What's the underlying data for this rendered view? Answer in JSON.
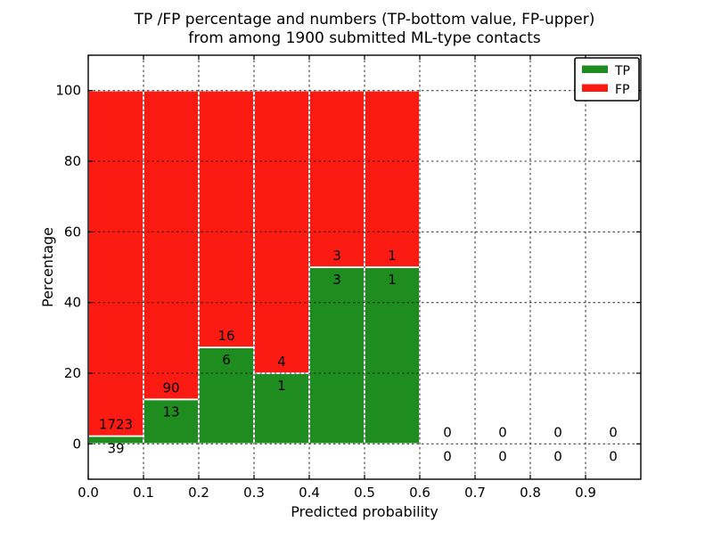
{
  "chart_data": {
    "type": "bar",
    "stacked": true,
    "title_lines": [
      "TP /FP percentage and numbers (TP-bottom value, FP-upper)",
      "from among 1900 submitted ML-type contacts"
    ],
    "xlabel": "Predicted probability",
    "ylabel": "Percentage",
    "total_submitted_contacts": 1900,
    "xlim": [
      0.0,
      1.0
    ],
    "ylim": [
      -10,
      110
    ],
    "xticks": [
      0.0,
      0.1,
      0.2,
      0.3,
      0.4,
      0.5,
      0.6,
      0.7,
      0.8,
      0.9
    ],
    "xtick_labels": [
      "0.0",
      "0.1",
      "0.2",
      "0.3",
      "0.4",
      "0.5",
      "0.6",
      "0.7",
      "0.8",
      "0.9"
    ],
    "yticks": [
      0,
      20,
      40,
      60,
      80,
      100
    ],
    "ytick_labels": [
      "0",
      "20",
      "40",
      "60",
      "80",
      "100"
    ],
    "grid": true,
    "legend_position": "upper right",
    "series": [
      {
        "name": "TP",
        "color": "#1e8c1e"
      },
      {
        "name": "FP",
        "color": "#fc1b13"
      }
    ],
    "bins": [
      {
        "x0": 0.0,
        "x1": 0.1,
        "tp_count": 39,
        "fp_count": 1723,
        "tp_pct": 2.2,
        "fp_pct": 97.8
      },
      {
        "x0": 0.1,
        "x1": 0.2,
        "tp_count": 13,
        "fp_count": 90,
        "tp_pct": 12.6,
        "fp_pct": 87.4
      },
      {
        "x0": 0.2,
        "x1": 0.3,
        "tp_count": 6,
        "fp_count": 16,
        "tp_pct": 27.3,
        "fp_pct": 72.7
      },
      {
        "x0": 0.3,
        "x1": 0.4,
        "tp_count": 1,
        "fp_count": 4,
        "tp_pct": 20.0,
        "fp_pct": 80.0
      },
      {
        "x0": 0.4,
        "x1": 0.5,
        "tp_count": 3,
        "fp_count": 3,
        "tp_pct": 50.0,
        "fp_pct": 50.0
      },
      {
        "x0": 0.5,
        "x1": 0.6,
        "tp_count": 1,
        "fp_count": 1,
        "tp_pct": 50.0,
        "fp_pct": 50.0
      },
      {
        "x0": 0.6,
        "x1": 0.7,
        "tp_count": 0,
        "fp_count": 0,
        "tp_pct": 0,
        "fp_pct": 0
      },
      {
        "x0": 0.7,
        "x1": 0.8,
        "tp_count": 0,
        "fp_count": 0,
        "tp_pct": 0,
        "fp_pct": 0
      },
      {
        "x0": 0.8,
        "x1": 0.9,
        "tp_count": 0,
        "fp_count": 0,
        "tp_pct": 0,
        "fp_pct": 0
      },
      {
        "x0": 0.9,
        "x1": 1.0,
        "tp_count": 0,
        "fp_count": 0,
        "tp_pct": 0,
        "fp_pct": 0
      }
    ],
    "colors": {
      "tp": "#1e8c1e",
      "fp": "#fc1b13",
      "bar_edge": "#ffffff",
      "grid": "#111111",
      "axis": "#000000",
      "background": "#ffffff"
    }
  }
}
